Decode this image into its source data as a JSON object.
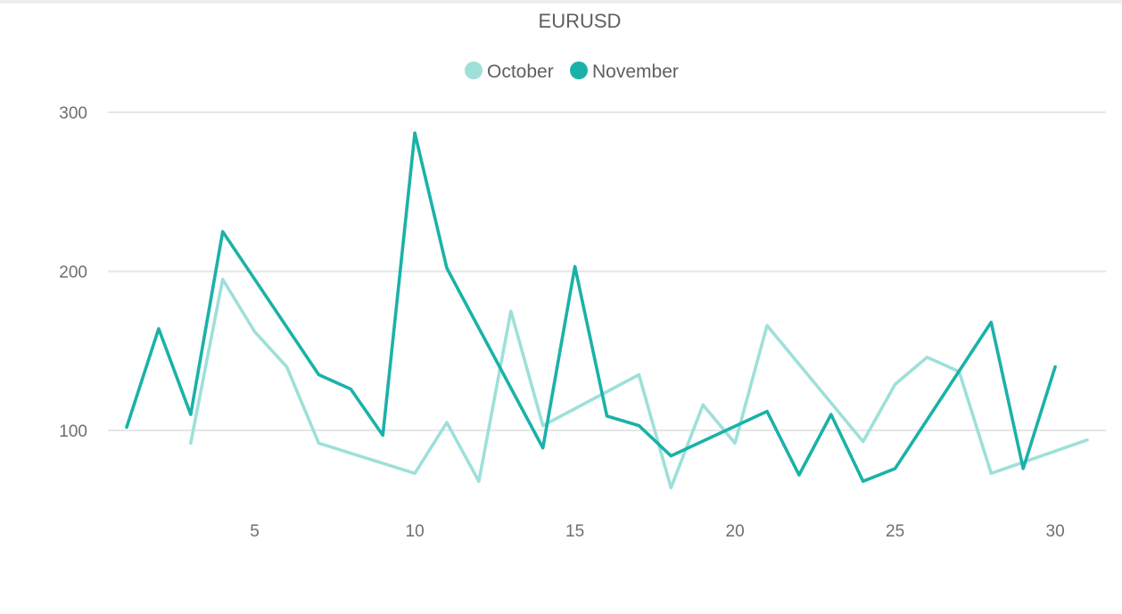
{
  "chart_data": {
    "type": "line",
    "title": "EURUSD",
    "xlabel": "",
    "ylabel": "",
    "xlim": [
      0.5,
      31.5
    ],
    "ylim": [
      50,
      300
    ],
    "x_ticks": [
      5,
      10,
      15,
      20,
      25,
      30
    ],
    "y_ticks": [
      100,
      200,
      300
    ],
    "grid": true,
    "legend_position": "top-center",
    "series": [
      {
        "name": "October",
        "color": "#9ee0d9",
        "x": [
          3,
          4,
          5,
          6,
          7,
          10,
          11,
          12,
          13,
          14,
          17,
          18,
          19,
          20,
          21,
          24,
          25,
          26,
          27,
          28,
          31
        ],
        "y": [
          92,
          195,
          162,
          140,
          92,
          73,
          105,
          68,
          175,
          103,
          135,
          64,
          116,
          92,
          166,
          93,
          129,
          146,
          137,
          73,
          94
        ]
      },
      {
        "name": "November",
        "color": "#1ab2a8",
        "x": [
          1,
          2,
          3,
          4,
          7,
          8,
          9,
          10,
          11,
          14,
          15,
          16,
          17,
          18,
          21,
          22,
          23,
          24,
          25,
          28,
          29,
          30
        ],
        "y": [
          102,
          164,
          110,
          225,
          135,
          126,
          97,
          287,
          202,
          89,
          203,
          109,
          103,
          84,
          112,
          72,
          110,
          68,
          76,
          168,
          76,
          140
        ]
      }
    ]
  }
}
